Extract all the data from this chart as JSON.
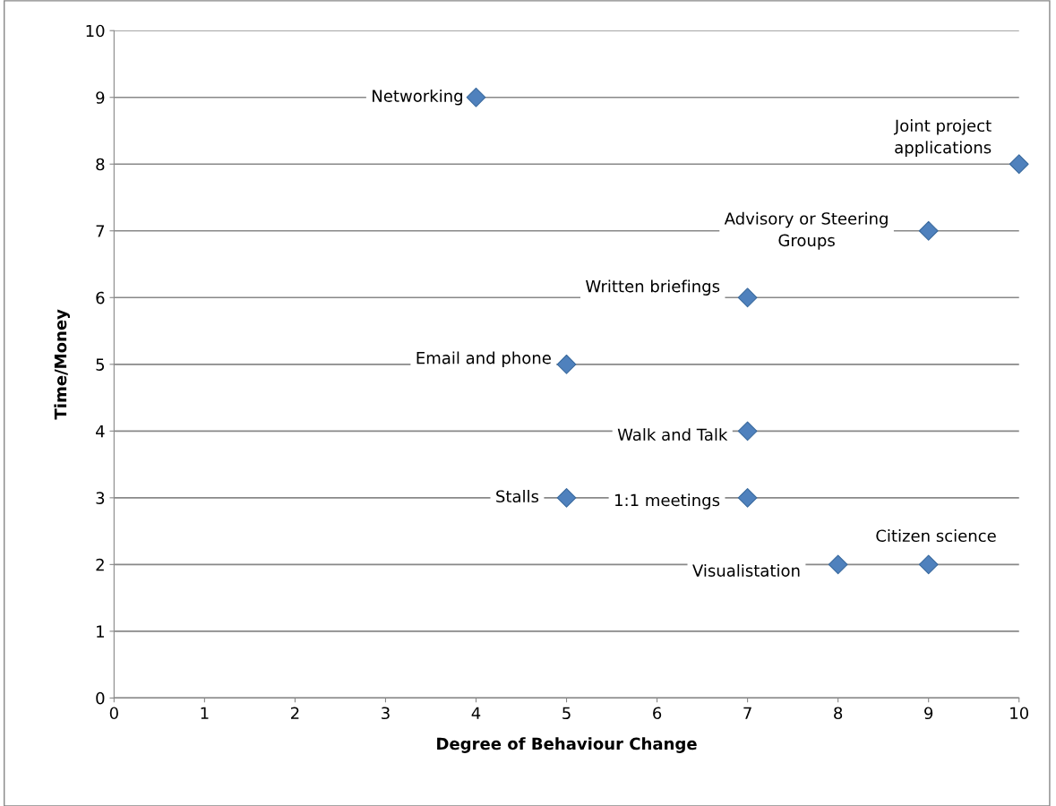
{
  "chart_data": {
    "type": "scatter",
    "xlabel": "Degree of Behaviour Change",
    "ylabel": "Time/Money",
    "x": [
      4,
      10,
      9,
      7,
      5,
      7,
      5,
      7,
      8,
      9
    ],
    "series": [
      {
        "color": "#4f81bd",
        "values": [
          9,
          8,
          7,
          6,
          5,
          4,
          3,
          3,
          2,
          2
        ]
      }
    ],
    "annotations": [
      {
        "text": "Networking",
        "x": 4,
        "y": 9
      },
      {
        "text": "Joint project\napplications",
        "x": 10,
        "y": 8
      },
      {
        "text": "Advisory or Steering\nGroups",
        "x": 9,
        "y": 7
      },
      {
        "text": "Written briefings",
        "x": 7,
        "y": 6
      },
      {
        "text": "Email and phone",
        "x": 5,
        "y": 5
      },
      {
        "text": "Walk and Talk",
        "x": 7,
        "y": 4
      },
      {
        "text": "Stalls",
        "x": 5,
        "y": 3
      },
      {
        "text": "1:1 meetings",
        "x": 7,
        "y": 3
      },
      {
        "text": "Visualistation",
        "x": 8,
        "y": 2
      },
      {
        "text": "Citizen science",
        "x": 9,
        "y": 2
      }
    ],
    "xlim": [
      0,
      10
    ],
    "ylim": [
      0,
      10
    ],
    "xticks": [
      0,
      1,
      2,
      3,
      4,
      5,
      6,
      7,
      8,
      9,
      10
    ],
    "yticks": [
      0,
      1,
      2,
      3,
      4,
      5,
      6,
      7,
      8,
      9,
      10
    ],
    "grid": "y",
    "marker": "diamond"
  }
}
